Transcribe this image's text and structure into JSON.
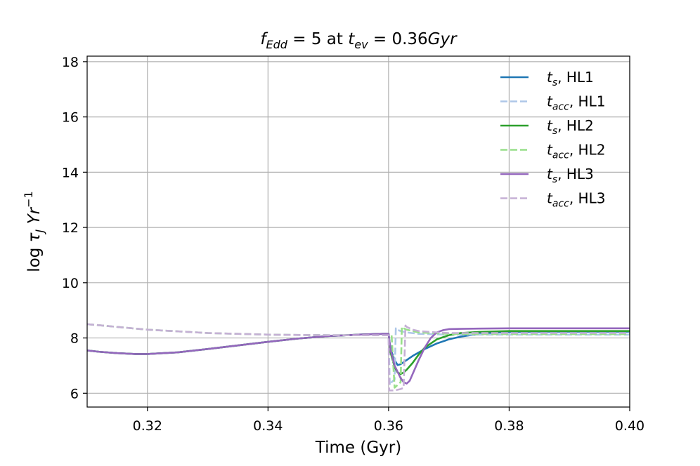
{
  "chart_data": {
    "type": "line",
    "title": "f_Edd = 5 at t_ev = 0.36Gyr",
    "title_parts": {
      "f": "f",
      "edd_sub": "Edd",
      "eq_five": " = 5 at ",
      "t": "t",
      "ev_sub": "ev",
      "eq_value": " = 0.36",
      "unit": "Gyr"
    },
    "xlabel": "Time (Gyr)",
    "ylabel": "log τ_J Yr^-1",
    "ylabel_parts": {
      "log": "log ",
      "tau": "τ",
      "sub": "J",
      "yr": " Yr",
      "sup": "−1"
    },
    "xlim": [
      0.31,
      0.4
    ],
    "ylim": [
      5.5,
      18.2
    ],
    "xticks": [
      0.32,
      0.34,
      0.36,
      0.38,
      0.4
    ],
    "xtick_labels": [
      "0.32",
      "0.34",
      "0.36",
      "0.38",
      "0.40"
    ],
    "yticks": [
      6,
      8,
      10,
      12,
      14,
      16,
      18
    ],
    "ytick_labels": [
      "6",
      "8",
      "10",
      "12",
      "14",
      "16",
      "18"
    ],
    "grid": true,
    "legend_position": "top-right",
    "series": [
      {
        "name": "t_s, HL1",
        "label_main": "t",
        "label_sub": "s",
        "label_rest": ", HL1",
        "color": "#1f77b4",
        "dash": "solid",
        "x": [
          0.31,
          0.312,
          0.315,
          0.318,
          0.32,
          0.325,
          0.33,
          0.335,
          0.34,
          0.345,
          0.35,
          0.355,
          0.359,
          0.36,
          0.3602,
          0.3605,
          0.361,
          0.3615,
          0.362,
          0.363,
          0.364,
          0.366,
          0.368,
          0.37,
          0.372,
          0.375,
          0.378,
          0.38,
          0.385,
          0.39,
          0.395,
          0.4
        ],
        "y": [
          7.55,
          7.5,
          7.45,
          7.42,
          7.42,
          7.48,
          7.6,
          7.73,
          7.86,
          7.98,
          8.07,
          8.12,
          8.15,
          8.15,
          7.8,
          7.5,
          7.2,
          7.02,
          7.05,
          7.2,
          7.35,
          7.6,
          7.8,
          7.95,
          8.05,
          8.15,
          8.2,
          8.22,
          8.23,
          8.23,
          8.23,
          8.23
        ]
      },
      {
        "name": "t_acc, HL1",
        "label_main": "t",
        "label_sub": "acc",
        "label_rest": ", HL1",
        "color": "#aec7e8",
        "dash": "dashed",
        "x": [
          0.31,
          0.315,
          0.32,
          0.33,
          0.34,
          0.35,
          0.359,
          0.36,
          0.3602,
          0.3605,
          0.361,
          0.3612,
          0.3614,
          0.362,
          0.363,
          0.365,
          0.37,
          0.375,
          0.38,
          0.39,
          0.4
        ],
        "y": [
          8.5,
          8.4,
          8.3,
          8.18,
          8.12,
          8.1,
          8.1,
          8.1,
          6.3,
          6.4,
          6.5,
          8.35,
          8.3,
          8.25,
          8.2,
          8.15,
          8.12,
          8.12,
          8.12,
          8.12,
          8.12
        ]
      },
      {
        "name": "t_s, HL2",
        "label_main": "t",
        "label_sub": "s",
        "label_rest": ", HL2",
        "color": "#2ca02c",
        "dash": "solid",
        "x": [
          0.31,
          0.312,
          0.315,
          0.318,
          0.32,
          0.325,
          0.33,
          0.335,
          0.34,
          0.345,
          0.35,
          0.355,
          0.359,
          0.36,
          0.3603,
          0.361,
          0.3615,
          0.362,
          0.3625,
          0.363,
          0.364,
          0.365,
          0.366,
          0.368,
          0.37,
          0.372,
          0.375,
          0.378,
          0.38,
          0.385,
          0.39,
          0.395,
          0.4
        ],
        "y": [
          7.55,
          7.5,
          7.45,
          7.42,
          7.42,
          7.48,
          7.6,
          7.73,
          7.86,
          7.98,
          8.07,
          8.12,
          8.15,
          8.15,
          7.5,
          6.95,
          6.75,
          6.7,
          6.75,
          6.85,
          7.1,
          7.4,
          7.65,
          7.95,
          8.1,
          8.18,
          8.22,
          8.24,
          8.25,
          8.25,
          8.25,
          8.25,
          8.25
        ]
      },
      {
        "name": "t_acc, HL2",
        "label_main": "t",
        "label_sub": "acc",
        "label_rest": ", HL2",
        "color": "#98df8a",
        "dash": "dashed",
        "x": [
          0.31,
          0.315,
          0.32,
          0.33,
          0.34,
          0.35,
          0.359,
          0.36,
          0.3605,
          0.361,
          0.3615,
          0.362,
          0.3622,
          0.3625,
          0.363,
          0.365,
          0.37,
          0.375,
          0.38,
          0.39,
          0.4
        ],
        "y": [
          8.5,
          8.4,
          8.3,
          8.18,
          8.12,
          8.1,
          8.1,
          8.1,
          8.1,
          6.2,
          6.3,
          6.4,
          8.4,
          8.35,
          8.3,
          8.2,
          8.15,
          8.14,
          8.14,
          8.14,
          8.14
        ]
      },
      {
        "name": "t_s, HL3",
        "label_main": "t",
        "label_sub": "s",
        "label_rest": ", HL3",
        "color": "#9467bd",
        "dash": "solid",
        "x": [
          0.31,
          0.312,
          0.315,
          0.318,
          0.32,
          0.325,
          0.33,
          0.335,
          0.34,
          0.345,
          0.35,
          0.355,
          0.359,
          0.36,
          0.3603,
          0.361,
          0.362,
          0.3625,
          0.363,
          0.3635,
          0.364,
          0.365,
          0.366,
          0.367,
          0.368,
          0.369,
          0.37,
          0.372,
          0.375,
          0.38,
          0.385,
          0.39,
          0.395,
          0.4
        ],
        "y": [
          7.55,
          7.5,
          7.45,
          7.42,
          7.42,
          7.48,
          7.6,
          7.73,
          7.86,
          7.98,
          8.07,
          8.12,
          8.15,
          8.15,
          7.6,
          7.0,
          6.55,
          6.4,
          6.35,
          6.45,
          6.7,
          7.2,
          7.65,
          8.0,
          8.2,
          8.28,
          8.32,
          8.33,
          8.34,
          8.35,
          8.35,
          8.35,
          8.35,
          8.35
        ]
      },
      {
        "name": "t_acc, HL3",
        "label_main": "t",
        "label_sub": "acc",
        "label_rest": ", HL3",
        "color": "#c5b0d5",
        "dash": "dashed",
        "x": [
          0.31,
          0.315,
          0.32,
          0.33,
          0.34,
          0.35,
          0.359,
          0.36,
          0.3601,
          0.361,
          0.362,
          0.3625,
          0.3628,
          0.363,
          0.364,
          0.365,
          0.368,
          0.37,
          0.375,
          0.38,
          0.39,
          0.4
        ],
        "y": [
          8.5,
          8.4,
          8.3,
          8.18,
          8.12,
          8.1,
          8.1,
          8.1,
          6.1,
          6.1,
          6.15,
          6.2,
          8.45,
          8.4,
          8.3,
          8.25,
          8.2,
          8.18,
          8.18,
          8.18,
          8.18,
          8.18
        ]
      }
    ]
  }
}
